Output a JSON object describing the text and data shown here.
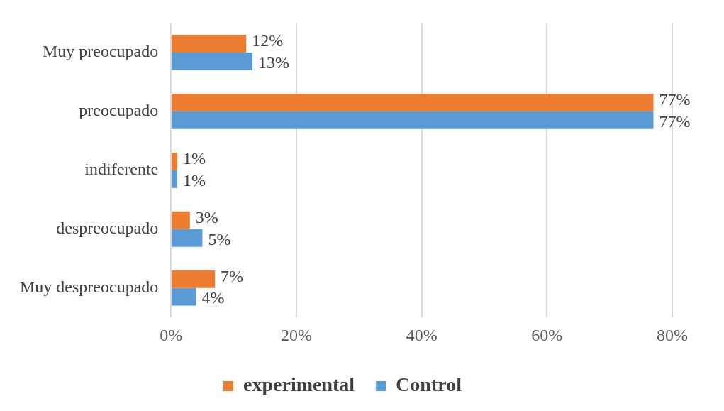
{
  "chart_data": {
    "type": "bar",
    "orientation": "horizontal",
    "categories": [
      "Muy preocupado",
      "preocupado",
      "indiferente",
      "despreocupado",
      "Muy despreocupado"
    ],
    "series": [
      {
        "name": "experimental",
        "color": "#ed7d31",
        "values": [
          12,
          77,
          1,
          3,
          7
        ],
        "value_labels": [
          "12%",
          "77%",
          "1%",
          "3%",
          "7%"
        ]
      },
      {
        "name": "Control",
        "color": "#5b9bd5",
        "values": [
          13,
          77,
          1,
          5,
          4
        ],
        "value_labels": [
          "13%",
          "77%",
          "1%",
          "5%",
          "4%"
        ]
      }
    ],
    "xlim": [
      0,
      80
    ],
    "xticks": [
      {
        "value": 0,
        "label": "0%"
      },
      {
        "value": 20,
        "label": "20%"
      },
      {
        "value": 40,
        "label": "40%"
      },
      {
        "value": 60,
        "label": "60%"
      },
      {
        "value": 80,
        "label": "80%"
      }
    ],
    "grid": "x",
    "legend": "bottom"
  }
}
